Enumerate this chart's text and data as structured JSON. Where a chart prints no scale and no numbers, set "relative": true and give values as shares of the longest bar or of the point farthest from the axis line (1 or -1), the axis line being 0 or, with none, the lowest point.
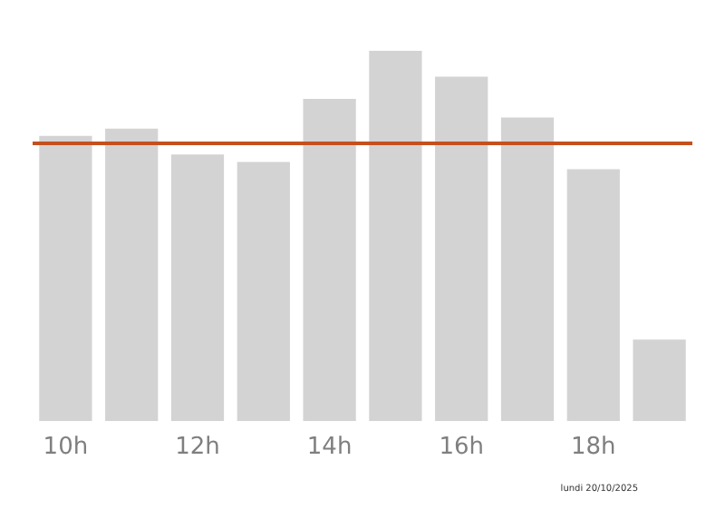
{
  "chart_data": {
    "type": "bar",
    "relative": true,
    "categories": [
      "10h",
      null,
      "12h",
      null,
      "14h",
      null,
      "16h",
      null,
      "18h",
      null
    ],
    "values": [
      0.77,
      0.79,
      0.72,
      0.7,
      0.87,
      1,
      0.93,
      0.82,
      0.68,
      0.22
    ],
    "color": "#d3d3d3",
    "ref_lines": [
      {
        "axis": "y",
        "value": 0.75,
        "color": "#c5501e",
        "line_style": "solid"
      }
    ],
    "annotations": [
      "lundi 20/10/2025"
    ],
    "grid": false
  }
}
